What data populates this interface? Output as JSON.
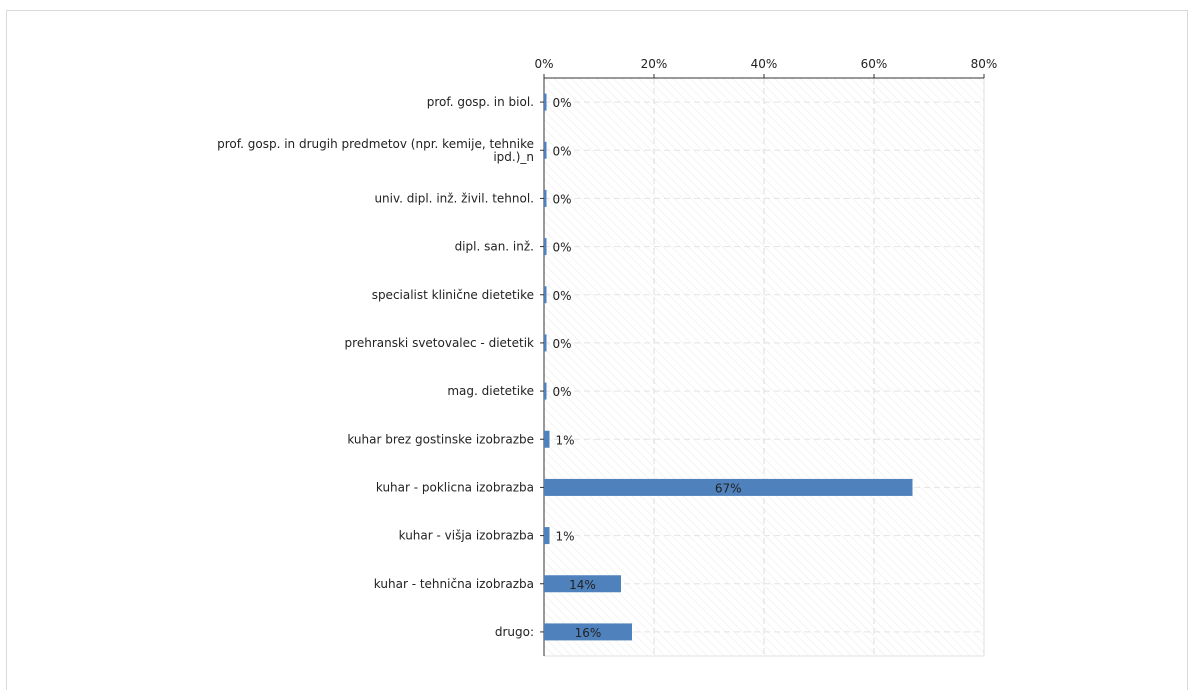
{
  "chart_data": {
    "type": "bar",
    "orientation": "horizontal",
    "categories": [
      "prof. gosp. in biol.",
      "prof. gosp. in drugih predmetov (npr. kemije, tehnike ipd.)_n",
      "univ. dipl. inž. živil. tehnol.",
      "dipl. san. inž.",
      "specialist klinične dietetike",
      "prehranski svetovalec - dietetik",
      "mag. dietetike",
      "kuhar brez gostinske izobrazbe",
      "kuhar - poklicna izobrazba",
      "kuhar - višja izobrazba",
      "kuhar - tehnična izobrazba",
      "drugo:"
    ],
    "category_lines": [
      [
        "prof. gosp. in biol."
      ],
      [
        "prof. gosp. in drugih predmetov (npr. kemije, tehnike",
        "ipd.)_n"
      ],
      [
        "univ. dipl. inž. živil. tehnol."
      ],
      [
        "dipl. san. inž."
      ],
      [
        "specialist klinične dietetike"
      ],
      [
        "prehranski svetovalec - dietetik"
      ],
      [
        "mag. dietetike"
      ],
      [
        "kuhar brez gostinske izobrazbe"
      ],
      [
        "kuhar - poklicna izobrazba"
      ],
      [
        "kuhar - višja izobrazba"
      ],
      [
        "kuhar - tehnična izobrazba"
      ],
      [
        "drugo:"
      ]
    ],
    "values": [
      0,
      0,
      0,
      0,
      0,
      0,
      0,
      1,
      67,
      1,
      14,
      16
    ],
    "value_labels": [
      "0%",
      "0%",
      "0%",
      "0%",
      "0%",
      "0%",
      "0%",
      "1%",
      "67%",
      "1%",
      "14%",
      "16%"
    ],
    "xlim": [
      0,
      80
    ],
    "xticks": [
      0,
      20,
      40,
      60,
      80
    ],
    "xtick_labels": [
      "0%",
      "20%",
      "40%",
      "60%",
      "80%"
    ],
    "axis_position": "top",
    "grid": true,
    "bar_color": "#4f81bd",
    "title": "",
    "xlabel": "",
    "ylabel": ""
  }
}
